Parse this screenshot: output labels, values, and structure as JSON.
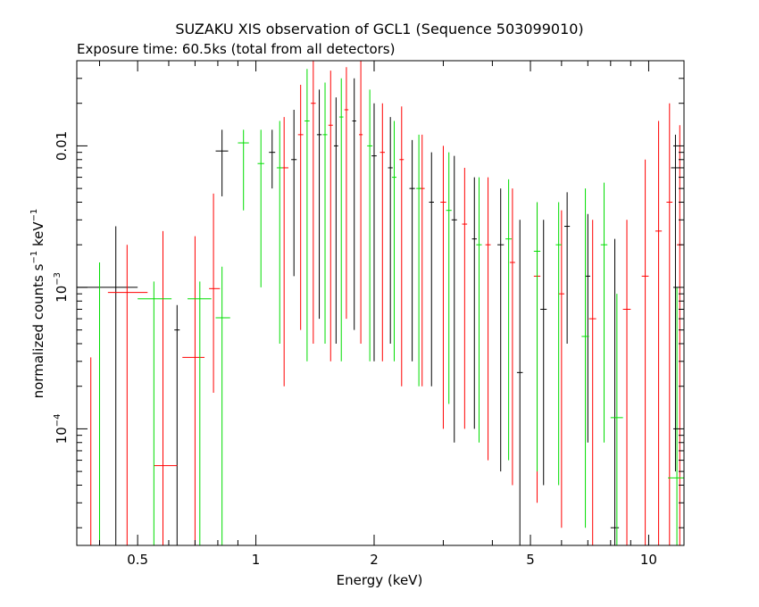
{
  "chart_data": {
    "type": "scatter",
    "title": "SUZAKU XIS observation of GCL1 (Sequence 503099010)",
    "subtitle": "Exposure time: 60.5ks (total from all detectors)",
    "xlabel": "Energy (keV)",
    "ylabel_parts": {
      "a": "normalized counts s",
      "b": "−1",
      "c": " keV",
      "d": "−1"
    },
    "x_scale": "log",
    "y_scale": "log",
    "xlim": [
      0.35,
      12.3
    ],
    "ylim": [
      1.5e-05,
      0.04
    ],
    "x_ticks": [
      {
        "v": 0.5,
        "label": "0.5"
      },
      {
        "v": 1,
        "label": "1"
      },
      {
        "v": 2,
        "label": "2"
      },
      {
        "v": 5,
        "label": "5"
      },
      {
        "v": 10,
        "label": "10"
      }
    ],
    "y_ticks": [
      {
        "v": 0.01,
        "label": "0.01"
      },
      {
        "v": 0.001,
        "label_base": "10",
        "label_exp": "−3"
      },
      {
        "v": 0.0001,
        "label_base": "10",
        "label_exp": "−4"
      }
    ],
    "grid": false,
    "series": [
      {
        "color": "#000000",
        "points": [
          {
            "x": 0.44,
            "xlo": 0.35,
            "xhi": 0.5,
            "y": 0.001,
            "ylo": 1.5e-05,
            "yhi": 0.0027
          },
          {
            "x": 0.63,
            "xlo": 0.62,
            "xhi": 0.64,
            "y": 0.0005,
            "ylo": 1.5e-05,
            "yhi": 0.00075
          },
          {
            "x": 0.82,
            "xlo": 0.79,
            "xhi": 0.85,
            "y": 0.0092,
            "ylo": 0.0044,
            "yhi": 0.013
          },
          {
            "x": 1.1,
            "xlo": 1.08,
            "xhi": 1.12,
            "y": 0.009,
            "ylo": 0.005,
            "yhi": 0.013
          },
          {
            "x": 1.25,
            "xlo": 1.23,
            "xhi": 1.27,
            "y": 0.008,
            "ylo": 0.0012,
            "yhi": 0.018
          },
          {
            "x": 1.45,
            "xlo": 1.43,
            "xhi": 1.47,
            "y": 0.012,
            "ylo": 0.0006,
            "yhi": 0.025
          },
          {
            "x": 1.6,
            "xlo": 1.58,
            "xhi": 1.62,
            "y": 0.01,
            "ylo": 0.0004,
            "yhi": 0.022
          },
          {
            "x": 1.78,
            "xlo": 1.76,
            "xhi": 1.8,
            "y": 0.015,
            "ylo": 0.0005,
            "yhi": 0.03
          },
          {
            "x": 2.0,
            "xlo": 1.97,
            "xhi": 2.03,
            "y": 0.0085,
            "ylo": 0.0003,
            "yhi": 0.02
          },
          {
            "x": 2.2,
            "xlo": 2.17,
            "xhi": 2.23,
            "y": 0.007,
            "ylo": 0.0004,
            "yhi": 0.016
          },
          {
            "x": 2.5,
            "xlo": 2.46,
            "xhi": 2.54,
            "y": 0.005,
            "ylo": 0.0003,
            "yhi": 0.011
          },
          {
            "x": 2.8,
            "xlo": 2.76,
            "xhi": 2.84,
            "y": 0.004,
            "ylo": 0.0002,
            "yhi": 0.009
          },
          {
            "x": 3.2,
            "xlo": 3.15,
            "xhi": 3.25,
            "y": 0.003,
            "ylo": 8e-05,
            "yhi": 0.0085
          },
          {
            "x": 3.6,
            "xlo": 3.55,
            "xhi": 3.65,
            "y": 0.0022,
            "ylo": 0.0001,
            "yhi": 0.006
          },
          {
            "x": 4.2,
            "xlo": 4.12,
            "xhi": 4.28,
            "y": 0.002,
            "ylo": 5e-05,
            "yhi": 0.005
          },
          {
            "x": 4.7,
            "xlo": 4.62,
            "xhi": 4.78,
            "y": 0.00025,
            "ylo": 1.5e-05,
            "yhi": 0.003
          },
          {
            "x": 5.4,
            "xlo": 5.3,
            "xhi": 5.5,
            "y": 0.0007,
            "ylo": 4e-05,
            "yhi": 0.003
          },
          {
            "x": 6.2,
            "xlo": 6.1,
            "xhi": 6.3,
            "y": 0.0027,
            "ylo": 0.0004,
            "yhi": 0.0047
          },
          {
            "x": 7.0,
            "xlo": 6.9,
            "xhi": 7.1,
            "y": 0.0012,
            "ylo": 8e-05,
            "yhi": 0.0033
          },
          {
            "x": 8.2,
            "xlo": 8.0,
            "xhi": 8.4,
            "y": 2e-05,
            "ylo": 1.5e-05,
            "yhi": 0.0022
          },
          {
            "x": 11.7,
            "xlo": 11.4,
            "xhi": 12.0,
            "y": 0.007,
            "ylo": 5e-05,
            "yhi": 0.012
          }
        ]
      },
      {
        "color": "#ff0000",
        "points": [
          {
            "x": 0.38,
            "xlo": 0.38,
            "xhi": 0.38,
            "y": 0.00032,
            "ylo": 1.5e-05,
            "yhi": 0.00032
          },
          {
            "x": 0.47,
            "xlo": 0.42,
            "xhi": 0.53,
            "y": 0.00092,
            "ylo": 1.5e-05,
            "yhi": 0.002
          },
          {
            "x": 0.58,
            "xlo": 0.55,
            "xhi": 0.63,
            "y": 5.5e-05,
            "ylo": 1.5e-05,
            "yhi": 0.0025
          },
          {
            "x": 0.7,
            "xlo": 0.65,
            "xhi": 0.74,
            "y": 0.00032,
            "ylo": 1.5e-05,
            "yhi": 0.0023
          },
          {
            "x": 0.78,
            "xlo": 0.76,
            "xhi": 0.81,
            "y": 0.00098,
            "ylo": 0.00018,
            "yhi": 0.0046
          },
          {
            "x": 1.18,
            "xlo": 1.15,
            "xhi": 1.21,
            "y": 0.007,
            "ylo": 0.0002,
            "yhi": 0.016
          },
          {
            "x": 1.3,
            "xlo": 1.28,
            "xhi": 1.32,
            "y": 0.012,
            "ylo": 0.0005,
            "yhi": 0.027
          },
          {
            "x": 1.4,
            "xlo": 1.38,
            "xhi": 1.42,
            "y": 0.02,
            "ylo": 0.0004,
            "yhi": 0.04
          },
          {
            "x": 1.55,
            "xlo": 1.53,
            "xhi": 1.57,
            "y": 0.014,
            "ylo": 0.0003,
            "yhi": 0.034
          },
          {
            "x": 1.7,
            "xlo": 1.68,
            "xhi": 1.72,
            "y": 0.018,
            "ylo": 0.0006,
            "yhi": 0.036
          },
          {
            "x": 1.85,
            "xlo": 1.83,
            "xhi": 1.87,
            "y": 0.012,
            "ylo": 0.0004,
            "yhi": 0.04
          },
          {
            "x": 2.1,
            "xlo": 2.07,
            "xhi": 2.13,
            "y": 0.009,
            "ylo": 0.0003,
            "yhi": 0.02
          },
          {
            "x": 2.35,
            "xlo": 2.32,
            "xhi": 2.38,
            "y": 0.008,
            "ylo": 0.0002,
            "yhi": 0.019
          },
          {
            "x": 2.65,
            "xlo": 2.61,
            "xhi": 2.69,
            "y": 0.005,
            "ylo": 0.0002,
            "yhi": 0.012
          },
          {
            "x": 3.0,
            "xlo": 2.95,
            "xhi": 3.05,
            "y": 0.004,
            "ylo": 0.0001,
            "yhi": 0.01
          },
          {
            "x": 3.4,
            "xlo": 3.35,
            "xhi": 3.45,
            "y": 0.0028,
            "ylo": 0.0001,
            "yhi": 0.007
          },
          {
            "x": 3.9,
            "xlo": 3.84,
            "xhi": 3.96,
            "y": 0.002,
            "ylo": 6e-05,
            "yhi": 0.006
          },
          {
            "x": 4.5,
            "xlo": 4.43,
            "xhi": 4.57,
            "y": 0.0015,
            "ylo": 4e-05,
            "yhi": 0.005
          },
          {
            "x": 5.2,
            "xlo": 5.1,
            "xhi": 5.3,
            "y": 0.0012,
            "ylo": 3e-05,
            "yhi": 0.004
          },
          {
            "x": 6.0,
            "xlo": 5.9,
            "xhi": 6.1,
            "y": 0.0009,
            "ylo": 2e-05,
            "yhi": 0.0035
          },
          {
            "x": 7.2,
            "xlo": 7.05,
            "xhi": 7.35,
            "y": 0.0006,
            "ylo": 1.5e-05,
            "yhi": 0.003
          },
          {
            "x": 8.8,
            "xlo": 8.6,
            "xhi": 9.0,
            "y": 0.0007,
            "ylo": 1.5e-05,
            "yhi": 0.003
          },
          {
            "x": 9.8,
            "xlo": 9.6,
            "xhi": 10.0,
            "y": 0.0012,
            "ylo": 1.5e-05,
            "yhi": 0.008
          },
          {
            "x": 10.6,
            "xlo": 10.4,
            "xhi": 10.8,
            "y": 0.0025,
            "ylo": 1.5e-05,
            "yhi": 0.015
          },
          {
            "x": 11.3,
            "xlo": 11.1,
            "xhi": 11.5,
            "y": 0.004,
            "ylo": 1.5e-05,
            "yhi": 0.02
          },
          {
            "x": 12.0,
            "xlo": 11.8,
            "xhi": 12.2,
            "y": 0.002,
            "ylo": 1.5e-05,
            "yhi": 0.014
          }
        ]
      },
      {
        "color": "#00dd00",
        "points": [
          {
            "x": 0.4,
            "xlo": 0.4,
            "xhi": 0.4,
            "y": 0.0005,
            "ylo": 1.5e-05,
            "yhi": 0.0015
          },
          {
            "x": 0.55,
            "xlo": 0.5,
            "xhi": 0.61,
            "y": 0.00083,
            "ylo": 1.5e-05,
            "yhi": 0.0011
          },
          {
            "x": 0.72,
            "xlo": 0.67,
            "xhi": 0.77,
            "y": 0.00083,
            "ylo": 1.5e-05,
            "yhi": 0.0011
          },
          {
            "x": 0.82,
            "xlo": 0.79,
            "xhi": 0.86,
            "y": 0.00061,
            "ylo": 1.5e-05,
            "yhi": 0.0014
          },
          {
            "x": 0.93,
            "xlo": 0.9,
            "xhi": 0.96,
            "y": 0.0105,
            "ylo": 0.0035,
            "yhi": 0.013
          },
          {
            "x": 1.03,
            "xlo": 1.01,
            "xhi": 1.05,
            "y": 0.0075,
            "ylo": 0.001,
            "yhi": 0.013
          },
          {
            "x": 1.15,
            "xlo": 1.13,
            "xhi": 1.17,
            "y": 0.007,
            "ylo": 0.0004,
            "yhi": 0.015
          },
          {
            "x": 1.35,
            "xlo": 1.33,
            "xhi": 1.37,
            "y": 0.015,
            "ylo": 0.0003,
            "yhi": 0.035
          },
          {
            "x": 1.5,
            "xlo": 1.48,
            "xhi": 1.52,
            "y": 0.012,
            "ylo": 0.0004,
            "yhi": 0.028
          },
          {
            "x": 1.65,
            "xlo": 1.63,
            "xhi": 1.67,
            "y": 0.016,
            "ylo": 0.0003,
            "yhi": 0.03
          },
          {
            "x": 1.95,
            "xlo": 1.92,
            "xhi": 1.98,
            "y": 0.01,
            "ylo": 0.0003,
            "yhi": 0.025
          },
          {
            "x": 2.25,
            "xlo": 2.22,
            "xhi": 2.28,
            "y": 0.006,
            "ylo": 0.0003,
            "yhi": 0.015
          },
          {
            "x": 2.6,
            "xlo": 2.56,
            "xhi": 2.64,
            "y": 0.005,
            "ylo": 0.0002,
            "yhi": 0.012
          },
          {
            "x": 3.1,
            "xlo": 3.05,
            "xhi": 3.15,
            "y": 0.0035,
            "ylo": 0.00015,
            "yhi": 0.009
          },
          {
            "x": 3.7,
            "xlo": 3.64,
            "xhi": 3.76,
            "y": 0.002,
            "ylo": 8e-05,
            "yhi": 0.006
          },
          {
            "x": 4.4,
            "xlo": 4.32,
            "xhi": 4.48,
            "y": 0.0022,
            "ylo": 6e-05,
            "yhi": 0.0058
          },
          {
            "x": 5.2,
            "xlo": 5.1,
            "xhi": 5.3,
            "y": 0.0018,
            "ylo": 5e-05,
            "yhi": 0.004
          },
          {
            "x": 5.9,
            "xlo": 5.8,
            "xhi": 6.0,
            "y": 0.002,
            "ylo": 4e-05,
            "yhi": 0.004
          },
          {
            "x": 6.9,
            "xlo": 6.75,
            "xhi": 7.05,
            "y": 0.00045,
            "ylo": 2e-05,
            "yhi": 0.005
          },
          {
            "x": 7.7,
            "xlo": 7.55,
            "xhi": 7.85,
            "y": 0.002,
            "ylo": 8e-05,
            "yhi": 0.0055
          },
          {
            "x": 8.3,
            "xlo": 8.0,
            "xhi": 8.6,
            "y": 0.00012,
            "ylo": 1.5e-05,
            "yhi": 0.0009
          },
          {
            "x": 11.8,
            "xlo": 11.2,
            "xhi": 12.3,
            "y": 4.5e-05,
            "ylo": 1.5e-05,
            "yhi": 0.001
          }
        ]
      }
    ]
  }
}
